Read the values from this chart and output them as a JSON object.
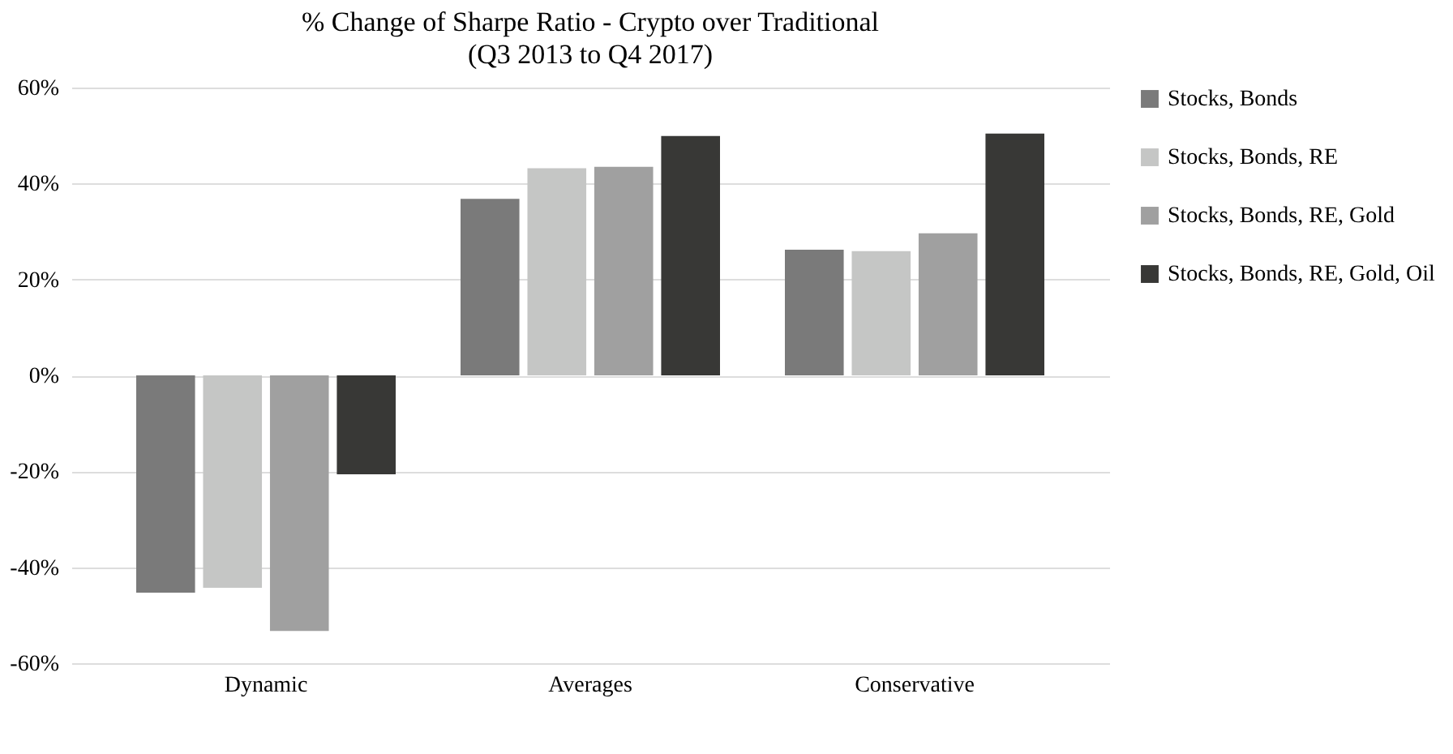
{
  "chart_data": {
    "type": "bar",
    "title": "% Change of Sharpe Ratio - Crypto over Traditional",
    "subtitle": "(Q3 2013 to Q4 2017)",
    "categories": [
      "Dynamic",
      "Averages",
      "Conservative"
    ],
    "series": [
      {
        "name": "Stocks, Bonds",
        "color": "#7a7a7a",
        "values": [
          -45.3,
          36.8,
          26.2
        ]
      },
      {
        "name": "Stocks, Bonds, RE",
        "color": "#c5c6c5",
        "values": [
          -44.3,
          43.2,
          25.9
        ]
      },
      {
        "name": "Stocks, Bonds, RE, Gold",
        "color": "#a0a0a0",
        "values": [
          -53.3,
          43.5,
          29.6
        ]
      },
      {
        "name": "Stocks, Bonds, RE, Gold, Oil",
        "color": "#383836",
        "values": [
          -20.6,
          49.9,
          50.4
        ]
      }
    ],
    "ylim": [
      -60,
      60
    ],
    "yticks": [
      {
        "value": -60,
        "label": "-60%"
      },
      {
        "value": -40,
        "label": "-40%"
      },
      {
        "value": -20,
        "label": "-20%"
      },
      {
        "value": 0,
        "label": "0%"
      },
      {
        "value": 20,
        "label": "20%"
      },
      {
        "value": 40,
        "label": "40%"
      },
      {
        "value": 60,
        "label": "60%"
      }
    ],
    "grid": "y",
    "legend": "right"
  }
}
